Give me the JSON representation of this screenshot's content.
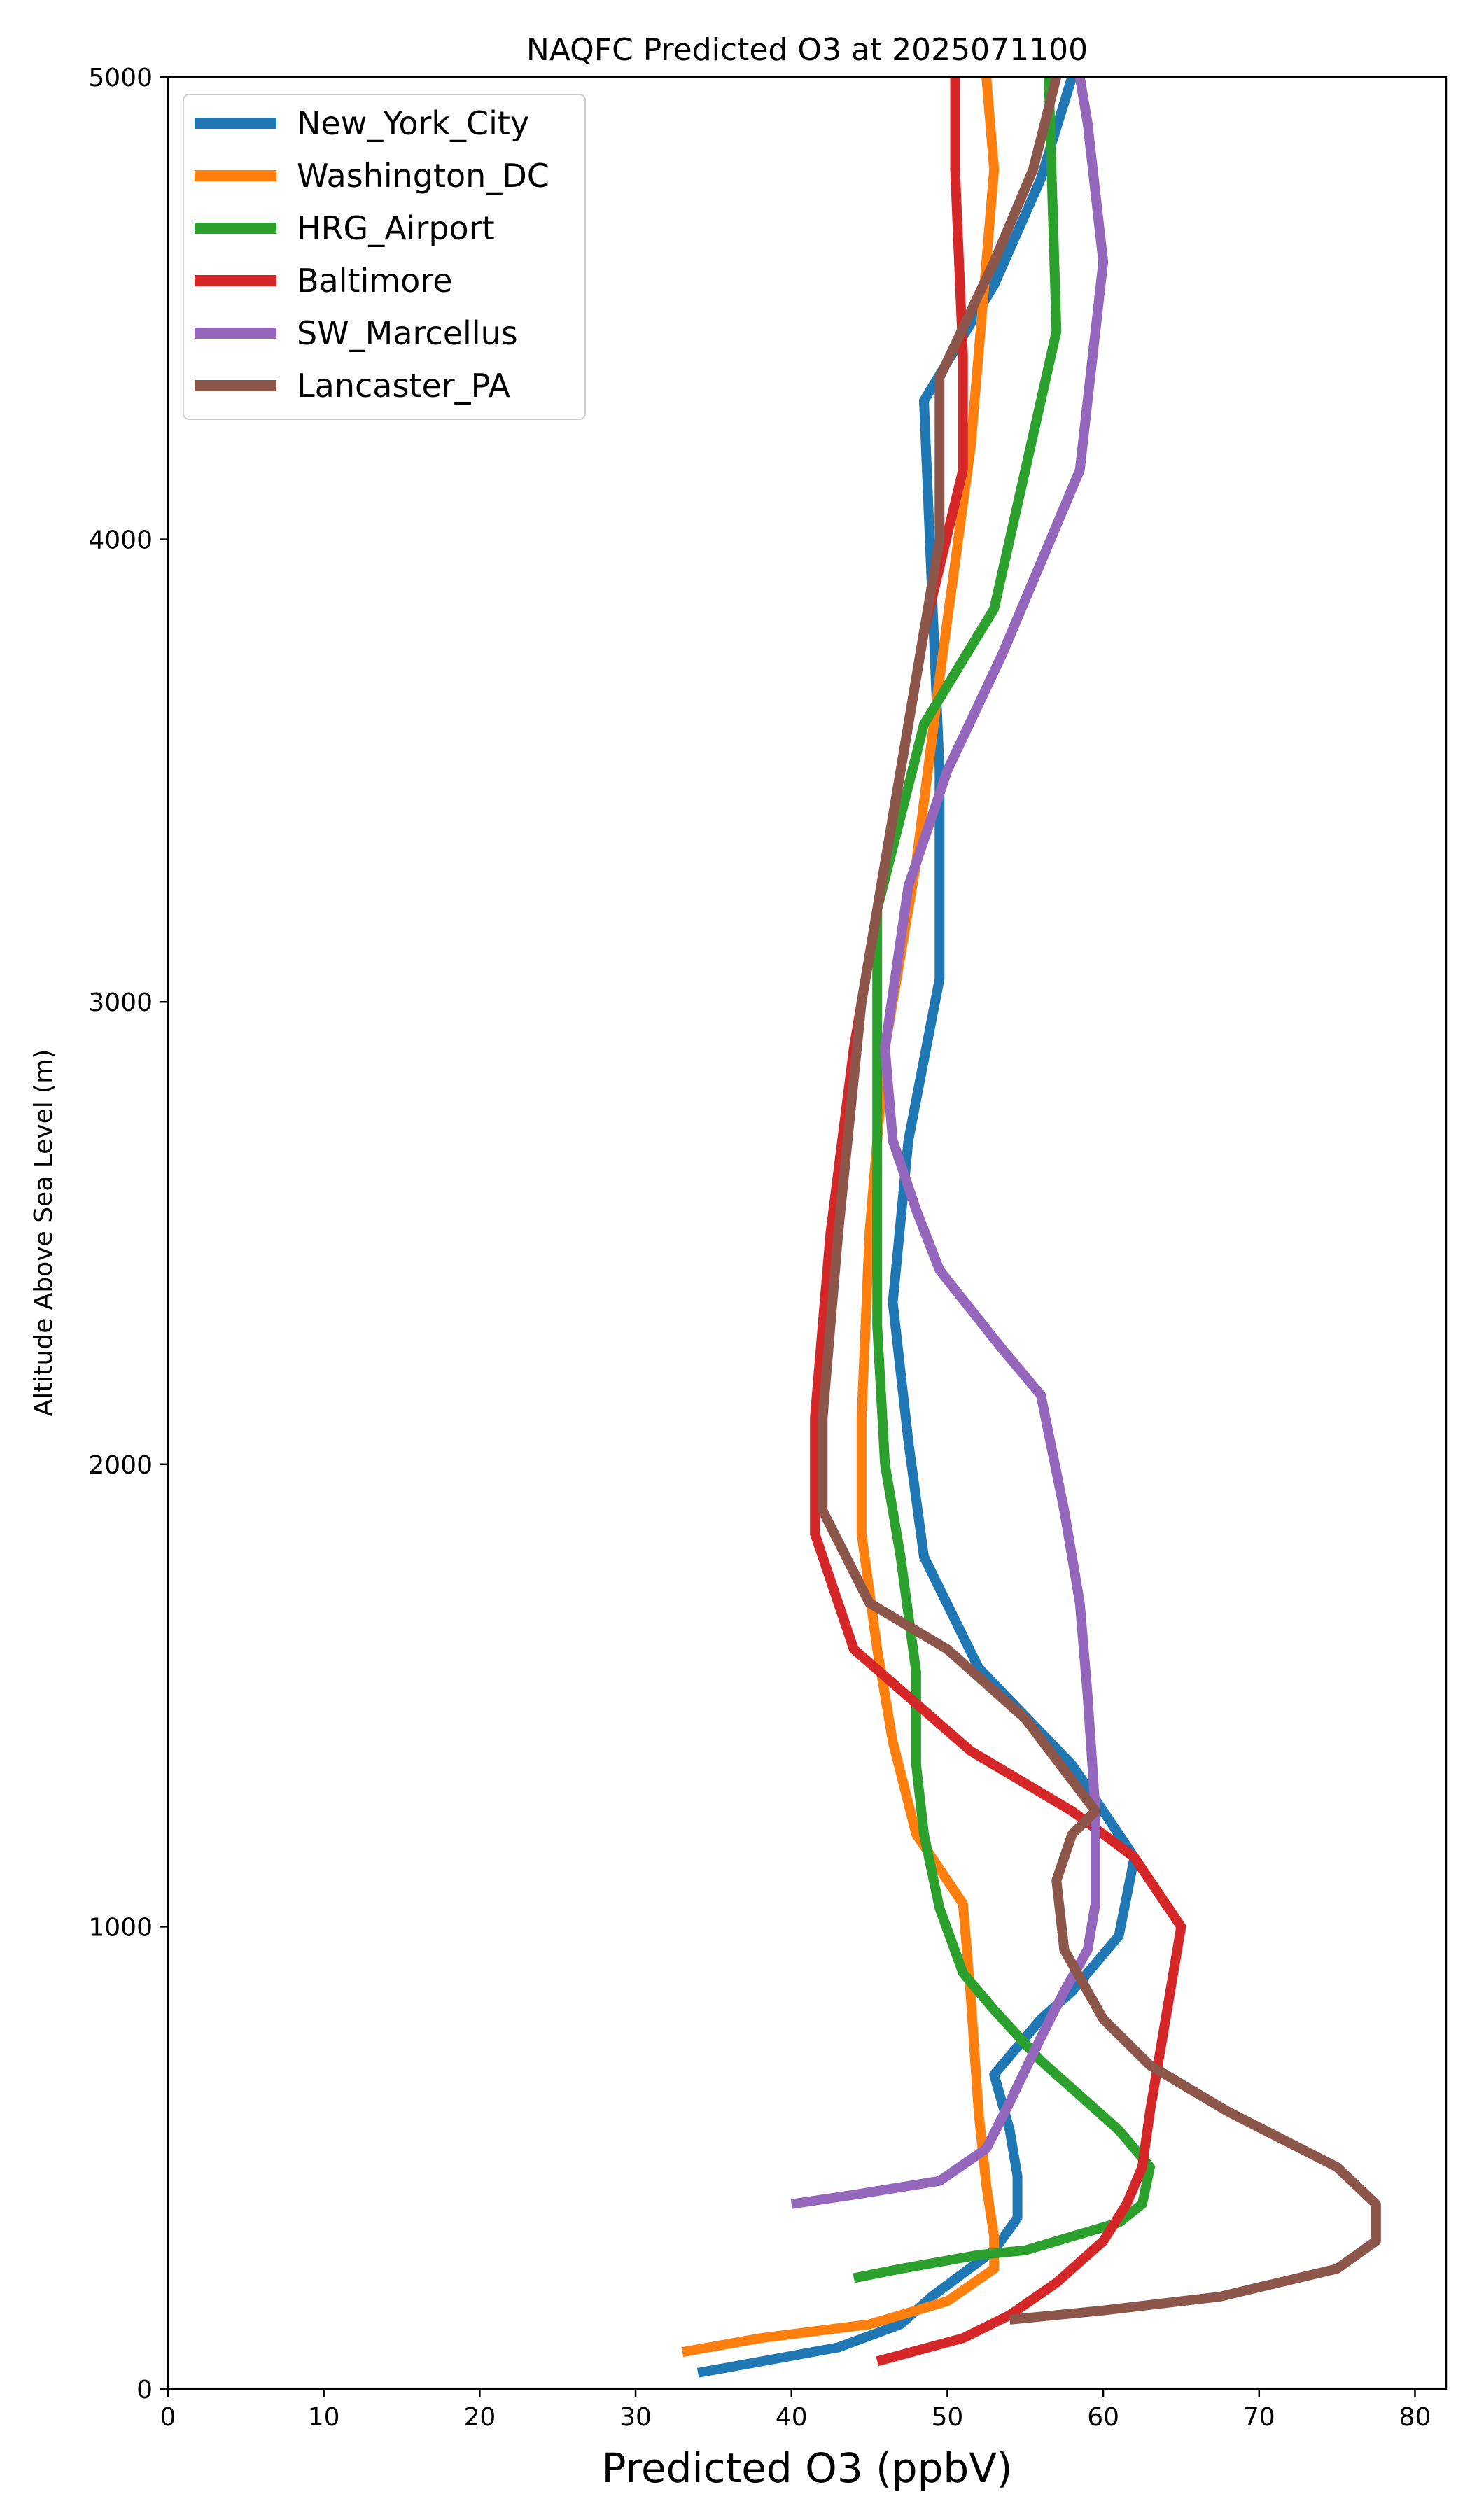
{
  "chart_data": {
    "type": "line",
    "title": "NAQFC Predicted O3 at 2025071100",
    "xlabel": "Predicted O3 (ppbV)",
    "ylabel": "Altitude Above Sea Level (m)",
    "xlim": [
      0,
      82
    ],
    "ylim": [
      0,
      5000
    ],
    "xticks": [
      0,
      10,
      20,
      30,
      40,
      50,
      60,
      70,
      80
    ],
    "yticks": [
      0,
      1000,
      2000,
      3000,
      4000,
      5000
    ],
    "grid": false,
    "legend_position": "top-left",
    "series": [
      {
        "name": "New_York_City",
        "color": "#1f77b4",
        "points": [
          [
            34,
            35
          ],
          [
            43,
            90
          ],
          [
            47,
            140
          ],
          [
            49,
            200
          ],
          [
            51,
            250
          ],
          [
            53,
            300
          ],
          [
            54.5,
            370
          ],
          [
            54.5,
            460
          ],
          [
            54,
            560
          ],
          [
            53,
            680
          ],
          [
            56,
            800
          ],
          [
            58,
            860
          ],
          [
            61,
            980
          ],
          [
            62,
            1150
          ],
          [
            58,
            1350
          ],
          [
            52,
            1560
          ],
          [
            48.5,
            1800
          ],
          [
            47.5,
            2050
          ],
          [
            46.5,
            2350
          ],
          [
            47.5,
            2700
          ],
          [
            49.5,
            3050
          ],
          [
            49.5,
            3500
          ],
          [
            49,
            3900
          ],
          [
            48.5,
            4300
          ],
          [
            53,
            4550
          ],
          [
            56,
            4780
          ],
          [
            58,
            5000
          ]
        ]
      },
      {
        "name": "Washington_DC",
        "color": "#ff7f0e",
        "points": [
          [
            33,
            80
          ],
          [
            38,
            110
          ],
          [
            45,
            140
          ],
          [
            50,
            190
          ],
          [
            53,
            260
          ],
          [
            53,
            330
          ],
          [
            52.5,
            440
          ],
          [
            52,
            600
          ],
          [
            51.5,
            850
          ],
          [
            51,
            1050
          ],
          [
            48,
            1200
          ],
          [
            46.5,
            1400
          ],
          [
            45.5,
            1600
          ],
          [
            44.5,
            1850
          ],
          [
            44.5,
            2100
          ],
          [
            45,
            2500
          ],
          [
            46,
            2900
          ],
          [
            48,
            3300
          ],
          [
            49.5,
            3700
          ],
          [
            51.5,
            4200
          ],
          [
            52.5,
            4600
          ],
          [
            53,
            4800
          ],
          [
            52.5,
            5000
          ]
        ]
      },
      {
        "name": "HRG_Airport",
        "color": "#2ca02c",
        "points": [
          [
            44,
            240
          ],
          [
            47,
            260
          ],
          [
            52,
            290
          ],
          [
            55,
            300
          ],
          [
            58,
            330
          ],
          [
            61,
            360
          ],
          [
            62.5,
            400
          ],
          [
            63,
            480
          ],
          [
            61,
            560
          ],
          [
            56,
            710
          ],
          [
            53,
            820
          ],
          [
            51,
            900
          ],
          [
            49.5,
            1040
          ],
          [
            48.5,
            1200
          ],
          [
            48,
            1350
          ],
          [
            48,
            1550
          ],
          [
            47,
            1800
          ],
          [
            46,
            2000
          ],
          [
            45.5,
            2300
          ],
          [
            45.5,
            2700
          ],
          [
            45.5,
            3000
          ],
          [
            45.5,
            3200
          ],
          [
            47,
            3400
          ],
          [
            48.5,
            3600
          ],
          [
            53,
            3850
          ],
          [
            54,
            4000
          ],
          [
            57,
            4450
          ],
          [
            56.5,
            5000
          ]
        ]
      },
      {
        "name": "Baltimore",
        "color": "#d62728",
        "points": [
          [
            45.5,
            60
          ],
          [
            51,
            110
          ],
          [
            54,
            160
          ],
          [
            57,
            230
          ],
          [
            60,
            320
          ],
          [
            61.5,
            400
          ],
          [
            62.5,
            480
          ],
          [
            63,
            600
          ],
          [
            64,
            800
          ],
          [
            65,
            1000
          ],
          [
            62,
            1150
          ],
          [
            58,
            1250
          ],
          [
            51.5,
            1380
          ],
          [
            44,
            1600
          ],
          [
            41.5,
            1850
          ],
          [
            41.5,
            2100
          ],
          [
            42.5,
            2500
          ],
          [
            44,
            2900
          ],
          [
            46.5,
            3400
          ],
          [
            48.5,
            3800
          ],
          [
            51,
            4150
          ],
          [
            51,
            4400
          ],
          [
            50.5,
            4800
          ],
          [
            50.5,
            5000
          ]
        ]
      },
      {
        "name": "SW_Marcellus",
        "color": "#9467bd",
        "points": [
          [
            40,
            400
          ],
          [
            44,
            420
          ],
          [
            49.5,
            450
          ],
          [
            52.5,
            520
          ],
          [
            54,
            620
          ],
          [
            56,
            760
          ],
          [
            57.5,
            860
          ],
          [
            59,
            950
          ],
          [
            59.5,
            1050
          ],
          [
            59.5,
            1250
          ],
          [
            59,
            1500
          ],
          [
            58.5,
            1700
          ],
          [
            57.5,
            1900
          ],
          [
            56,
            2150
          ],
          [
            53.5,
            2250
          ],
          [
            49.5,
            2420
          ],
          [
            48,
            2550
          ],
          [
            46.5,
            2700
          ],
          [
            46,
            2900
          ],
          [
            47.5,
            3250
          ],
          [
            50,
            3500
          ],
          [
            53.5,
            3750
          ],
          [
            58.5,
            4150
          ],
          [
            60,
            4600
          ],
          [
            59,
            4900
          ],
          [
            58.5,
            5000
          ]
        ]
      },
      {
        "name": "Lancaster_PA",
        "color": "#8c564b",
        "points": [
          [
            54,
            150
          ],
          [
            60,
            170
          ],
          [
            67.5,
            200
          ],
          [
            75,
            260
          ],
          [
            77.5,
            320
          ],
          [
            77.5,
            400
          ],
          [
            75,
            480
          ],
          [
            68,
            600
          ],
          [
            63,
            700
          ],
          [
            60,
            800
          ],
          [
            57.5,
            950
          ],
          [
            57,
            1100
          ],
          [
            58,
            1200
          ],
          [
            59.5,
            1250
          ],
          [
            55,
            1450
          ],
          [
            50,
            1600
          ],
          [
            45,
            1700
          ],
          [
            42,
            1900
          ],
          [
            42,
            2100
          ],
          [
            43,
            2500
          ],
          [
            44.5,
            3000
          ],
          [
            47,
            3500
          ],
          [
            49.5,
            4000
          ],
          [
            49.5,
            4350
          ],
          [
            53,
            4600
          ],
          [
            55.5,
            4800
          ],
          [
            57,
            5000
          ]
        ]
      }
    ]
  }
}
